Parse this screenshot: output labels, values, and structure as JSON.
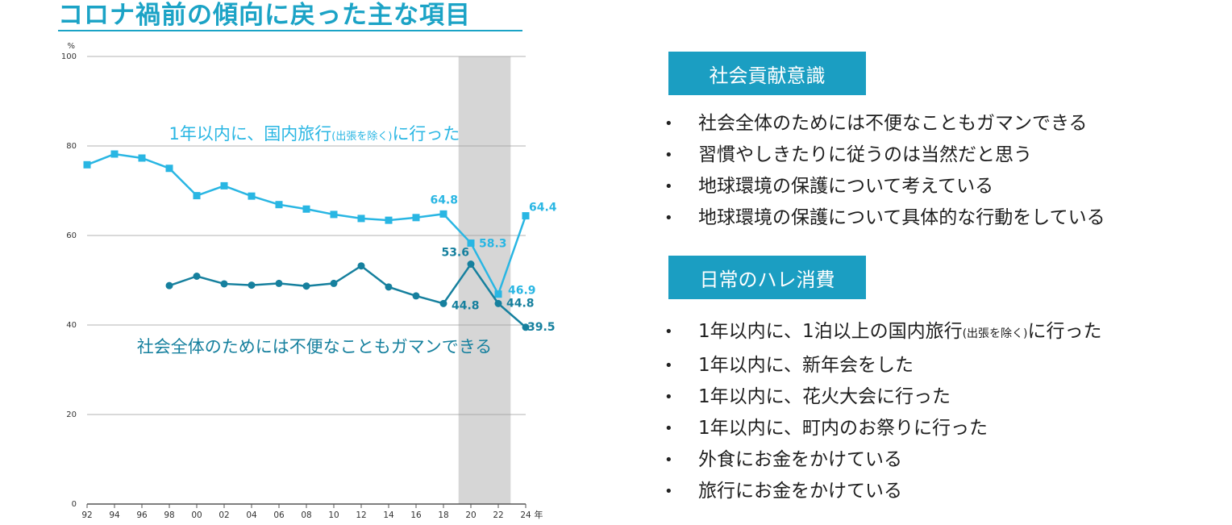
{
  "title": "コロナ禍前の傾向に戻った主な項目",
  "chart_data": {
    "type": "line",
    "x": [
      "92",
      "94",
      "96",
      "98",
      "00",
      "02",
      "04",
      "06",
      "08",
      "10",
      "12",
      "14",
      "16",
      "18",
      "20",
      "22",
      "24"
    ],
    "x_unit_label": "年",
    "y_unit_label": "%",
    "ylim": [
      0,
      100
    ],
    "y_ticks": [
      "0",
      "20",
      "40",
      "60",
      "80",
      "100"
    ],
    "grid": true,
    "shaded_region": [
      "20",
      "22"
    ],
    "series": [
      {
        "name": "1年以内に、国内旅行(出張を除く)に行った",
        "name_main": "1年以内に、国内旅行",
        "name_paren": "(出張を除く)",
        "name_tail": "に行った",
        "color": "#29b6e3",
        "marker": "square",
        "values": [
          75.8,
          78.2,
          77.3,
          75.0,
          68.9,
          71.1,
          68.8,
          66.9,
          65.9,
          64.7,
          63.8,
          63.4,
          64.0,
          64.8,
          58.3,
          46.9,
          64.4
        ],
        "labels": {
          "18": "64.8",
          "20": "58.3",
          "22": "46.9",
          "24": "64.4"
        }
      },
      {
        "name": "社会全体のためには不便なこともガマンできる",
        "color": "#16809e",
        "marker": "circle",
        "values": [
          null,
          null,
          null,
          48.8,
          50.9,
          49.2,
          48.9,
          49.3,
          48.7,
          49.3,
          53.2,
          48.5,
          46.5,
          44.8,
          53.6,
          44.8,
          39.5
        ],
        "labels": {
          "18": "44.8",
          "20": "53.6",
          "22": "44.8",
          "24": "39.5"
        }
      }
    ]
  },
  "panel1": {
    "header": "社会貢献意識",
    "items": [
      "社会全体のためには不便なこともガマンできる",
      "習慣やしきたりに従うのは当然だと思う",
      "地球環境の保護について考えている",
      "地球環境の保護について具体的な行動をしている"
    ]
  },
  "panel2": {
    "header": "日常のハレ消費",
    "items_main": [
      "1年以内に、1泊以上の国内旅行",
      "1年以内に、新年会をした",
      "1年以内に、花火大会に行った",
      "1年以内に、町内のお祭りに行った",
      "外食にお金をかけている",
      "旅行にお金をかけている"
    ],
    "item0_paren": "(出張を除く)",
    "item0_tail": "に行った"
  }
}
